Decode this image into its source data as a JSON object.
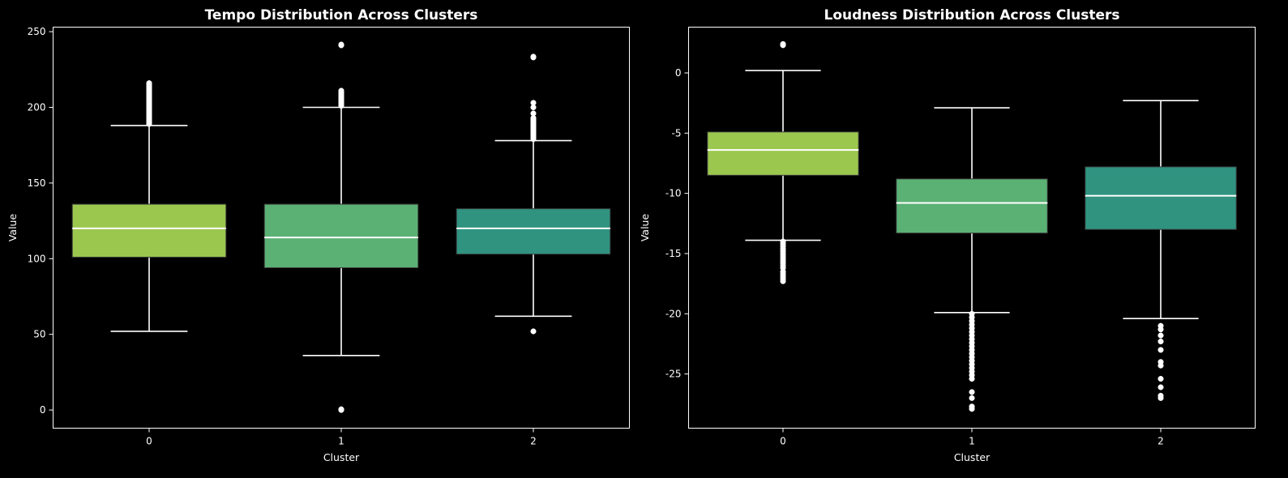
{
  "chart_data": [
    {
      "type": "box",
      "title": "Tempo Distribution Across Clusters",
      "xlabel": "Cluster",
      "ylabel": "Value",
      "categories": [
        "0",
        "1",
        "2"
      ],
      "ylim": [
        -12,
        253
      ],
      "yticks": [
        0,
        50,
        100,
        150,
        200,
        250
      ],
      "grid": false,
      "boxes": [
        {
          "category": "0",
          "color": "#9bc74f",
          "whisker_low": 52,
          "q1": 101,
          "median": 120,
          "q3": 136,
          "whisker_high": 188,
          "outliers": [
            189,
            190,
            191,
            192,
            193,
            194,
            195,
            196,
            197,
            198,
            199,
            200,
            201,
            202,
            203,
            204,
            205,
            206,
            207,
            208,
            209,
            210,
            211,
            212,
            213,
            214,
            215,
            216
          ]
        },
        {
          "category": "1",
          "color": "#5bb174",
          "whisker_low": 36,
          "q1": 94,
          "median": 114,
          "q3": 136,
          "whisker_high": 200,
          "outliers": [
            0,
            0.5,
            201,
            202,
            203,
            204,
            205,
            206,
            207,
            208,
            209,
            210,
            211,
            241,
            241.5
          ]
        },
        {
          "category": "2",
          "color": "#2f9380",
          "whisker_low": 62,
          "q1": 103,
          "median": 120,
          "q3": 133,
          "whisker_high": 178,
          "outliers": [
            52,
            179,
            180,
            181,
            182,
            183,
            184,
            185,
            186,
            187,
            188,
            189,
            190,
            191,
            192,
            193,
            196,
            200,
            203,
            233,
            233.5
          ]
        }
      ]
    },
    {
      "type": "box",
      "title": "Loudness Distribution Across Clusters",
      "xlabel": "Cluster",
      "ylabel": "Value",
      "categories": [
        "0",
        "1",
        "2"
      ],
      "ylim": [
        -29.5,
        3.8
      ],
      "yticks": [
        -25,
        -20,
        -15,
        -10,
        -5,
        0
      ],
      "grid": false,
      "boxes": [
        {
          "category": "0",
          "color": "#9bc74f",
          "whisker_low": -13.9,
          "q1": -8.5,
          "median": -6.4,
          "q3": -4.9,
          "whisker_high": 0.2,
          "outliers": [
            -14.0,
            -14.2,
            -14.4,
            -14.6,
            -14.8,
            -15.0,
            -15.2,
            -15.4,
            -15.6,
            -15.8,
            -16.0,
            -16.2,
            -16.5,
            -16.7,
            -16.9,
            -17.1,
            -17.3,
            2.3,
            2.4
          ]
        },
        {
          "category": "1",
          "color": "#5bb174",
          "whisker_low": -19.9,
          "q1": -13.3,
          "median": -10.8,
          "q3": -8.8,
          "whisker_high": -2.9,
          "outliers": [
            -20.0,
            -20.3,
            -20.6,
            -20.9,
            -21.2,
            -21.5,
            -21.8,
            -22.1,
            -22.4,
            -22.7,
            -23.0,
            -23.3,
            -23.6,
            -23.9,
            -24.2,
            -24.5,
            -24.8,
            -25.1,
            -25.4,
            -26.5,
            -27.0,
            -27.7,
            -27.9
          ]
        },
        {
          "category": "2",
          "color": "#2f9380",
          "whisker_low": -20.4,
          "q1": -13.0,
          "median": -10.2,
          "q3": -7.8,
          "whisker_high": -2.3,
          "outliers": [
            -21.0,
            -21.3,
            -21.8,
            -22.3,
            -23.0,
            -24.0,
            -24.3,
            -25.4,
            -26.1,
            -26.8,
            -27.0
          ]
        }
      ]
    }
  ]
}
